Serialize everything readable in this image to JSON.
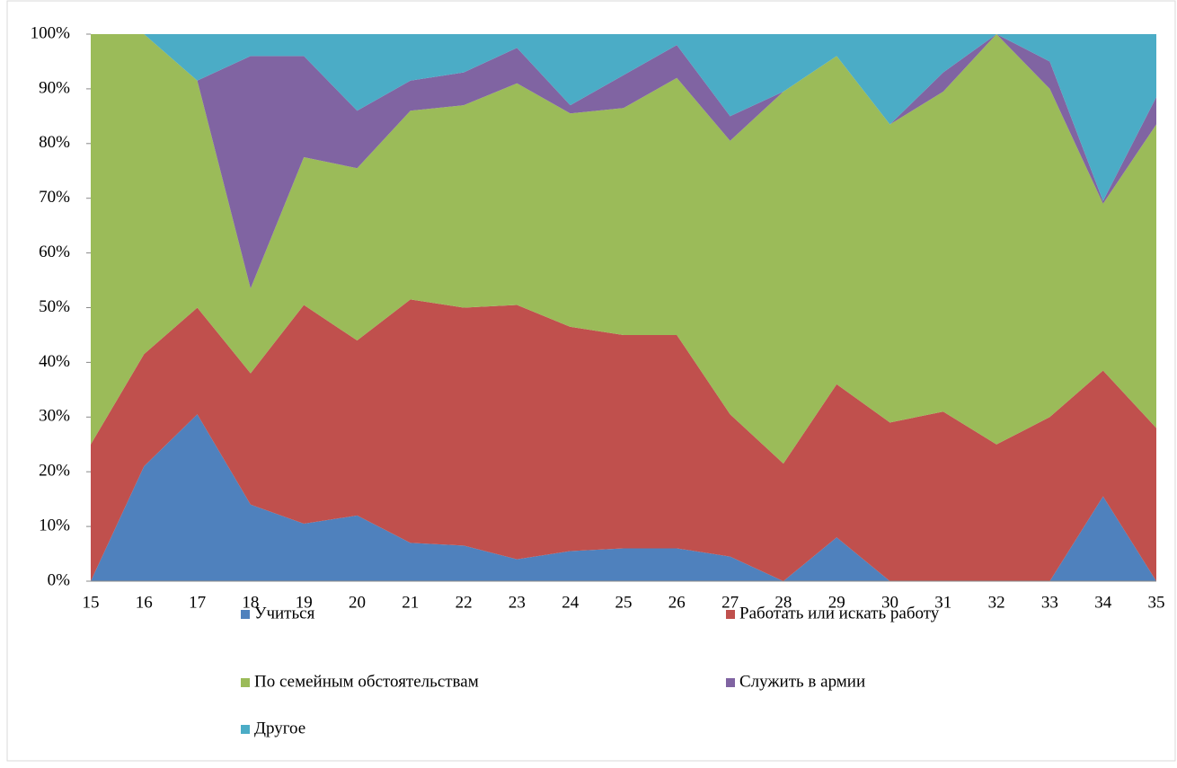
{
  "chart_data": {
    "type": "stacked_area",
    "categories": [
      "15",
      "16",
      "17",
      "18",
      "19",
      "20",
      "21",
      "22",
      "23",
      "24",
      "25",
      "26",
      "27",
      "28",
      "29",
      "30",
      "31",
      "32",
      "33",
      "34",
      "35"
    ],
    "series": [
      {
        "name": "Учиться",
        "color": "#4f81bd",
        "values": [
          0,
          21,
          30.5,
          14,
          10.5,
          12,
          7,
          6.5,
          4,
          5.5,
          6,
          6,
          4.5,
          0,
          8,
          0,
          0,
          0,
          0,
          15.5,
          0
        ]
      },
      {
        "name": "Работать или искать работу",
        "color": "#c0504d",
        "values": [
          25,
          20.5,
          19.5,
          24,
          40,
          32,
          44.5,
          43.5,
          46.5,
          41,
          39,
          39,
          26,
          21.5,
          28,
          29,
          31,
          25,
          30,
          23,
          28
        ]
      },
      {
        "name": "По семейным обстоятельствам",
        "color": "#9bbb59",
        "values": [
          75,
          58.5,
          41.5,
          15.5,
          27,
          31.5,
          34.5,
          37,
          40.5,
          39,
          41.5,
          47,
          50,
          68,
          60,
          54.5,
          58.5,
          75,
          60,
          30.5,
          55.5
        ]
      },
      {
        "name": "Служить в армии",
        "color": "#8064a2",
        "values": [
          0,
          0,
          0,
          42.5,
          18.5,
          10.5,
          5.5,
          6,
          6.5,
          1.5,
          6,
          6,
          4.5,
          0,
          0,
          0,
          3.5,
          0,
          5,
          0.5,
          5
        ]
      },
      {
        "name": "Другое",
        "color": "#4bacc6",
        "values": [
          0,
          0,
          8.5,
          4,
          4,
          14,
          8.5,
          7,
          2.5,
          13,
          7.5,
          2,
          15,
          10.5,
          4,
          16.5,
          7,
          0,
          5,
          30.5,
          11.5
        ]
      }
    ],
    "ylim": [
      0,
      100
    ],
    "yticks": [
      {
        "value": 0,
        "label": "0%"
      },
      {
        "value": 10,
        "label": "10%"
      },
      {
        "value": 20,
        "label": "20%"
      },
      {
        "value": 30,
        "label": "30%"
      },
      {
        "value": 40,
        "label": "40%"
      },
      {
        "value": 50,
        "label": "50%"
      },
      {
        "value": 60,
        "label": "60%"
      },
      {
        "value": 70,
        "label": "70%"
      },
      {
        "value": 80,
        "label": "80%"
      },
      {
        "value": 90,
        "label": "90%"
      },
      {
        "value": 100,
        "label": "100%"
      }
    ]
  }
}
